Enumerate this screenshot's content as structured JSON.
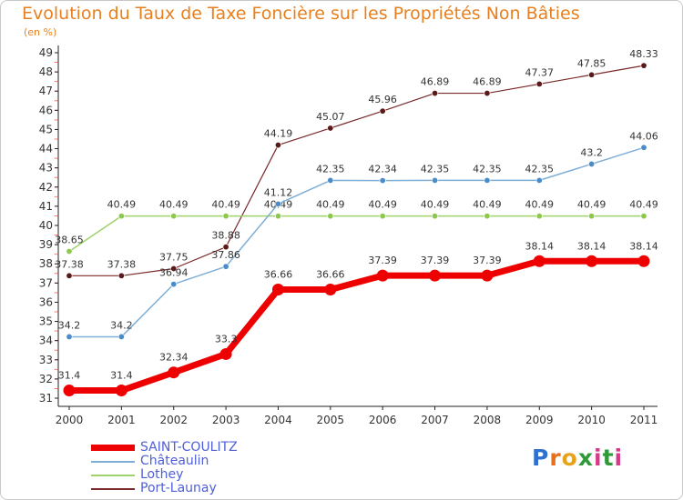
{
  "title": "Evolution du Taux de Taxe Foncière sur les Propriétés Non Bâties",
  "unit": "(en %)",
  "brand": {
    "letters": [
      "P",
      "r",
      "o",
      "x",
      "i",
      "t",
      "i"
    ],
    "colors": [
      "#2f6fd0",
      "#e8701a",
      "#e8a21a",
      "#2f9a3a",
      "#d83a8a",
      "#2f9a3a",
      "#d83a8a"
    ]
  },
  "chart_data": {
    "type": "line",
    "title": "Evolution du Taux de Taxe Foncière sur les Propriétés Non Bâties",
    "ylabel": "(en %)",
    "x": [
      "2000",
      "2001",
      "2002",
      "2003",
      "2004",
      "2005",
      "2006",
      "2007",
      "2008",
      "2009",
      "2010",
      "2011"
    ],
    "yticks": [
      31,
      32,
      33,
      34,
      35,
      36,
      37,
      38,
      39,
      40,
      41,
      42,
      43,
      44,
      45,
      46,
      47,
      48,
      49
    ],
    "ylim": [
      30.6,
      49.2
    ],
    "grid": false,
    "legend": "bottom-left",
    "series": [
      {
        "name": "Port-Launay",
        "color": "#7a2a2a",
        "marker": "#5a1a1a",
        "width": 1.2,
        "values": [
          37.38,
          37.38,
          37.75,
          38.88,
          44.19,
          45.07,
          45.96,
          46.89,
          46.89,
          47.37,
          47.85,
          48.33
        ],
        "labels": [
          "37.38",
          "37.38",
          "37.75",
          "38.88",
          "44.19",
          "45.07",
          "45.96",
          "46.89",
          "46.89",
          "47.37",
          "47.85",
          "48.33"
        ]
      },
      {
        "name": "Lothey",
        "color": "#9ed36a",
        "marker": "#8cc84b",
        "width": 1.5,
        "values": [
          38.65,
          40.49,
          40.49,
          40.49,
          40.49,
          40.49,
          40.49,
          40.49,
          40.49,
          40.49,
          40.49,
          40.49
        ],
        "labels": [
          "38.65",
          "40.49",
          "40.49",
          "40.49",
          "40.49",
          "40.49",
          "40.49",
          "40.49",
          "40.49",
          "40.49",
          "40.49",
          "40.49"
        ]
      },
      {
        "name": "Châteaulin",
        "color": "#7eaed6",
        "marker": "#4a8cc8",
        "width": 1.5,
        "values": [
          34.2,
          34.2,
          36.94,
          37.86,
          41.12,
          42.35,
          42.34,
          42.35,
          42.35,
          42.35,
          43.2,
          44.06
        ],
        "labels": [
          "34.2",
          "34.2",
          "36.94",
          "37.86",
          "41.12",
          "42.35",
          "42.34",
          "42.35",
          "42.35",
          "42.35",
          "43.2",
          "44.06"
        ]
      },
      {
        "name": "SAINT-COULITZ",
        "color": "#ee0000",
        "marker": "#ee0000",
        "width": 7,
        "values": [
          31.4,
          31.4,
          32.34,
          33.3,
          36.66,
          36.66,
          37.39,
          37.39,
          37.39,
          38.14,
          38.14,
          38.14
        ],
        "labels": [
          "31.4",
          "31.4",
          "32.34",
          "33.3",
          "36.66",
          "36.66",
          "37.39",
          "37.39",
          "37.39",
          "38.14",
          "38.14",
          "38.14"
        ]
      }
    ]
  },
  "legend_items": [
    "SAINT-COULITZ",
    "Châteaulin",
    "Lothey",
    "Port-Launay"
  ]
}
